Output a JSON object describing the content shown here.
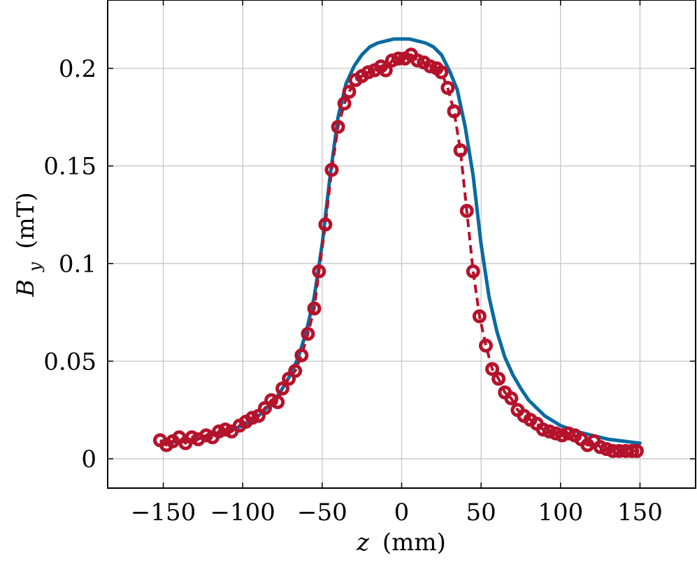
{
  "chart_data": {
    "type": "line",
    "xlabel_var": "z",
    "xlabel_unit": "(mm)",
    "ylabel_var": "B",
    "ylabel_sub": "y",
    "ylabel_unit": "(mT)",
    "xlim": [
      -185,
      185
    ],
    "ylim": [
      -0.015,
      0.235
    ],
    "xticks": [
      -150,
      -100,
      -50,
      0,
      50,
      100,
      150
    ],
    "xtick_labels": [
      "−150",
      "−100",
      "−50",
      "0",
      "50",
      "100",
      "150"
    ],
    "yticks": [
      0,
      0.05,
      0.1,
      0.15,
      0.2
    ],
    "ytick_labels": [
      "0",
      "0.05",
      "0.1",
      "0.15",
      "0.2"
    ],
    "grid": true,
    "colors": {
      "model": "#0a6aa0",
      "measured": "#b5122b",
      "grid": "#c6c6c6",
      "axis": "#000000"
    },
    "series": [
      {
        "style": "solid-line",
        "color": "#0a6aa0",
        "x": [
          -150,
          -140,
          -130,
          -120,
          -110,
          -100,
          -90,
          -80,
          -75,
          -70,
          -65,
          -60,
          -55,
          -50,
          -45,
          -40,
          -35,
          -30,
          -25,
          -20,
          -15,
          -10,
          -5,
          0,
          5,
          10,
          15,
          20,
          25,
          30,
          35,
          40,
          45,
          50,
          55,
          60,
          65,
          70,
          75,
          80,
          90,
          100,
          110,
          120,
          130,
          140,
          150
        ],
        "y": [
          0.008,
          0.009,
          0.01,
          0.012,
          0.014,
          0.017,
          0.022,
          0.03,
          0.036,
          0.043,
          0.052,
          0.065,
          0.083,
          0.11,
          0.145,
          0.175,
          0.192,
          0.201,
          0.207,
          0.211,
          0.213,
          0.214,
          0.215,
          0.215,
          0.215,
          0.214,
          0.213,
          0.211,
          0.207,
          0.199,
          0.189,
          0.17,
          0.145,
          0.11,
          0.083,
          0.065,
          0.052,
          0.043,
          0.036,
          0.03,
          0.022,
          0.017,
          0.014,
          0.012,
          0.01,
          0.009,
          0.008
        ]
      },
      {
        "style": "dashed-line-circles",
        "color": "#b5122b",
        "x": [
          -152,
          -148,
          -144,
          -140,
          -136,
          -132,
          -128,
          -123,
          -119,
          -115,
          -111,
          -107,
          -102,
          -98,
          -94,
          -90,
          -86,
          -82,
          -78,
          -75,
          -71,
          -67,
          -63,
          -59,
          -55,
          -52,
          -48,
          -44,
          -40,
          -36,
          -33,
          -29,
          -25,
          -21,
          -17,
          -13,
          -10,
          -6,
          -2,
          2,
          6,
          10,
          14,
          18,
          22,
          25,
          29,
          33,
          37,
          41,
          45,
          49,
          53,
          57,
          61,
          65,
          69,
          73,
          77,
          81,
          85,
          89,
          93,
          97,
          101,
          105,
          109,
          113,
          117,
          121,
          125,
          129,
          133,
          137,
          141,
          145,
          148
        ],
        "y": [
          0.0095,
          0.007,
          0.009,
          0.011,
          0.008,
          0.011,
          0.01,
          0.012,
          0.011,
          0.014,
          0.015,
          0.014,
          0.017,
          0.019,
          0.021,
          0.022,
          0.026,
          0.03,
          0.029,
          0.036,
          0.041,
          0.045,
          0.053,
          0.064,
          0.077,
          0.096,
          0.12,
          0.148,
          0.17,
          0.182,
          0.188,
          0.194,
          0.196,
          0.198,
          0.199,
          0.201,
          0.199,
          0.204,
          0.205,
          0.205,
          0.207,
          0.204,
          0.203,
          0.201,
          0.2,
          0.198,
          0.19,
          0.178,
          0.158,
          0.127,
          0.096,
          0.073,
          0.058,
          0.046,
          0.041,
          0.034,
          0.031,
          0.025,
          0.022,
          0.02,
          0.018,
          0.015,
          0.014,
          0.013,
          0.012,
          0.013,
          0.012,
          0.01,
          0.007,
          0.009,
          0.006,
          0.005,
          0.004,
          0.004,
          0.004,
          0.004,
          0.004
        ]
      }
    ]
  }
}
